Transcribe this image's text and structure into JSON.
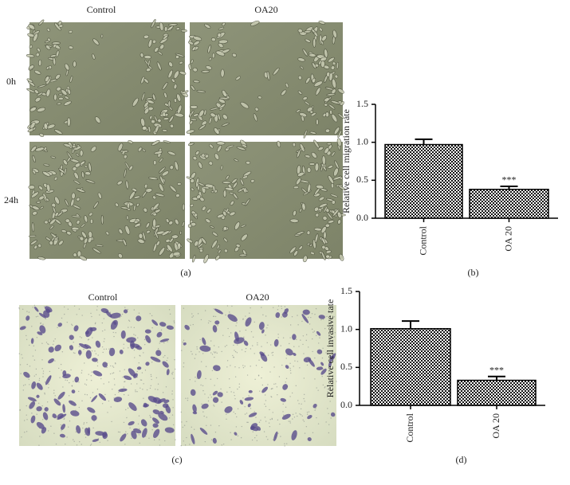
{
  "panel_a": {
    "column_labels": [
      "Control",
      "OA20"
    ],
    "row_labels": [
      "0h",
      "24h"
    ],
    "label": "(a)"
  },
  "panel_c": {
    "column_labels": [
      "Control",
      "OA20"
    ],
    "label": "(c)"
  },
  "chart_data": [
    {
      "type": "bar",
      "label": "(b)",
      "y_label": "Relative cell migration rate",
      "categories": [
        "Control",
        "OA 20"
      ],
      "values": [
        0.97,
        0.38
      ],
      "errors": [
        0.07,
        0.04
      ],
      "significance": [
        null,
        "***"
      ],
      "ylim": [
        0,
        1.5
      ],
      "yticks": [
        {
          "value": 0,
          "label": "0.0"
        },
        0.5,
        {
          "value": 1,
          "label": "1.0"
        },
        1.5
      ]
    },
    {
      "type": "bar",
      "label": "(d)",
      "y_label": "Relative cell invasive tate",
      "categories": [
        "Control",
        "OA 20"
      ],
      "values": [
        1.01,
        0.33
      ],
      "errors": [
        0.1,
        0.05
      ],
      "significance": [
        null,
        "***"
      ],
      "ylim": [
        0,
        1.5
      ],
      "yticks": [
        {
          "value": 0,
          "label": "0.0"
        },
        0.5,
        {
          "value": 1,
          "label": "1.0"
        },
        1.5
      ]
    }
  ]
}
